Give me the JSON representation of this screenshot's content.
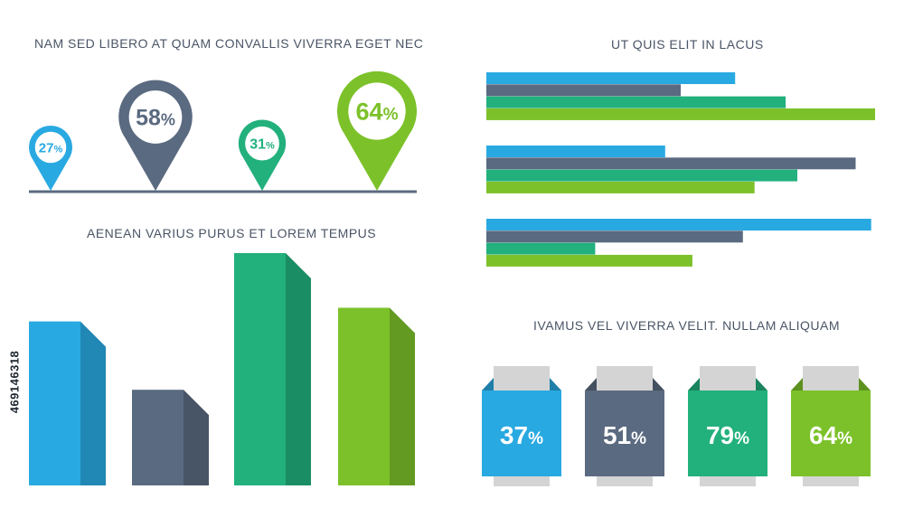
{
  "colors": {
    "blue": "#29a9e1",
    "slate": "#5a6a80",
    "teal": "#22b07d",
    "green": "#7cc12a",
    "title": "#4a5566",
    "gray": "#d4d4d4"
  },
  "stock_id": "469146318",
  "chart_data": [
    {
      "type": "scatter",
      "title": "NAM SED LIBERO AT QUAM CONVALLIS VIVERRA EGET NEC",
      "style": "map-pins",
      "values": [
        27,
        58,
        31,
        64
      ],
      "labels": [
        "27%",
        "58%",
        "31%",
        "64%"
      ],
      "colors": [
        "#29a9e1",
        "#5a6a80",
        "#22b07d",
        "#7cc12a"
      ]
    },
    {
      "type": "bar",
      "title": "AENEAN VARIUS PURUS ET LOREM TEMPUS",
      "style": "3d-columns",
      "values": [
        60,
        35,
        85,
        65
      ],
      "ylim": [
        0,
        100
      ],
      "colors": [
        "#29a9e1",
        "#5a6a80",
        "#22b07d",
        "#7cc12a"
      ]
    },
    {
      "type": "bar",
      "orientation": "horizontal",
      "title": "UT QUIS ELIT IN LACUS",
      "groups": [
        [
          64,
          50,
          77,
          100
        ],
        [
          46,
          95,
          80,
          69
        ],
        [
          99,
          66,
          28,
          53
        ]
      ],
      "xlim": [
        0,
        100
      ],
      "colors": [
        "#29a9e1",
        "#5a6a80",
        "#22b07d",
        "#7cc12a"
      ]
    },
    {
      "type": "table",
      "title": "IVAMUS VEL VIVERRA VELIT. NULLAM ALIQUAM",
      "style": "folded-boxes",
      "values": [
        37,
        51,
        79,
        64
      ],
      "labels": [
        "37%",
        "51%",
        "79%",
        "64%"
      ],
      "colors": [
        "#29a9e1",
        "#5a6a80",
        "#22b07d",
        "#7cc12a"
      ]
    }
  ]
}
